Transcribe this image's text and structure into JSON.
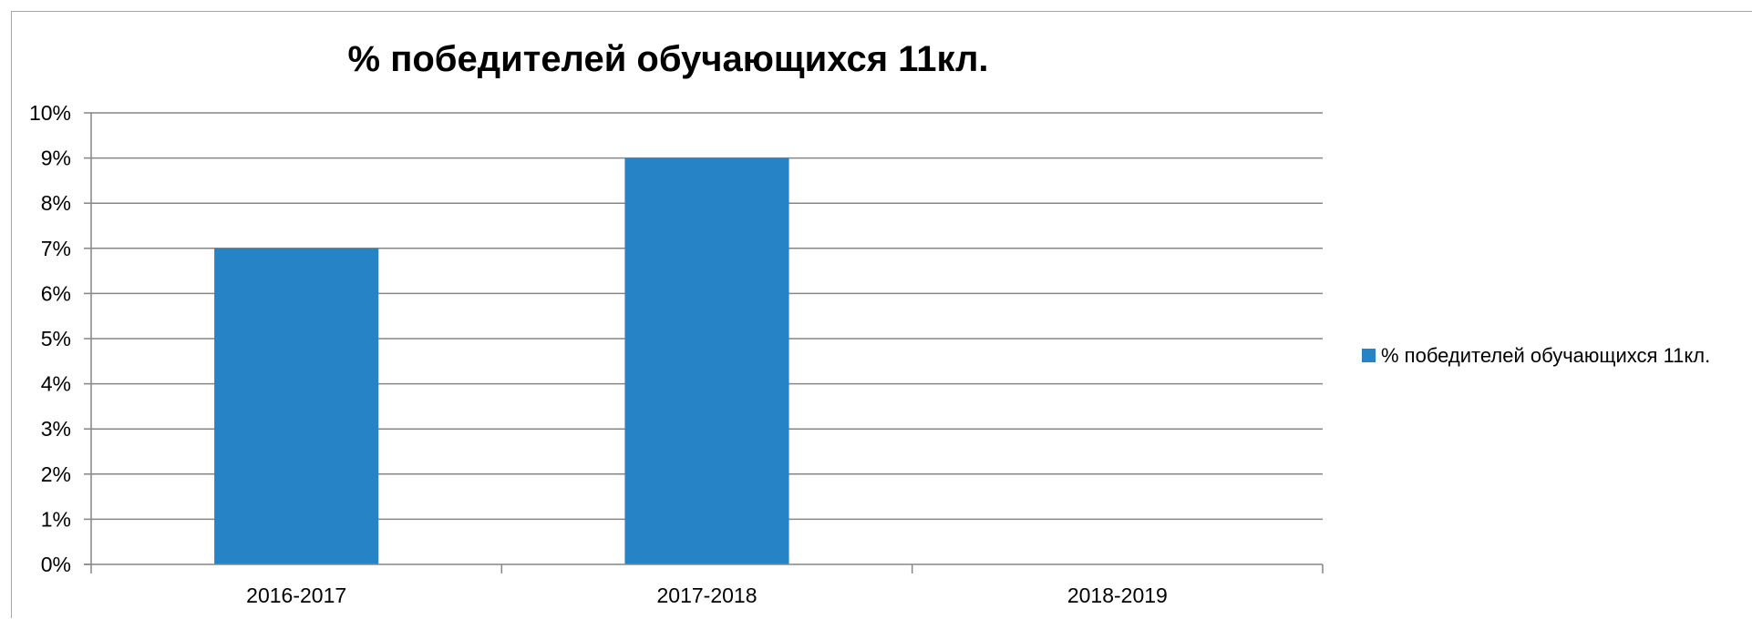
{
  "chart_data": {
    "type": "bar",
    "title": "% победителей обучающихся 11кл.",
    "xlabel": "",
    "ylabel": "",
    "categories": [
      "2016-2017",
      "2017-2018",
      "2018-2019"
    ],
    "series": [
      {
        "name": "% победителей обучающихся 11кл.",
        "values": [
          0.07,
          0.09,
          0
        ],
        "color": "#2683c6"
      }
    ],
    "ylim": [
      0,
      0.1
    ],
    "y_tick_step": 0.01,
    "y_format": "percent",
    "grid": true,
    "legend_position": "right",
    "colors": {
      "gridline": "#868686",
      "axis": "#868686",
      "frame": "#a6a6a6"
    }
  }
}
